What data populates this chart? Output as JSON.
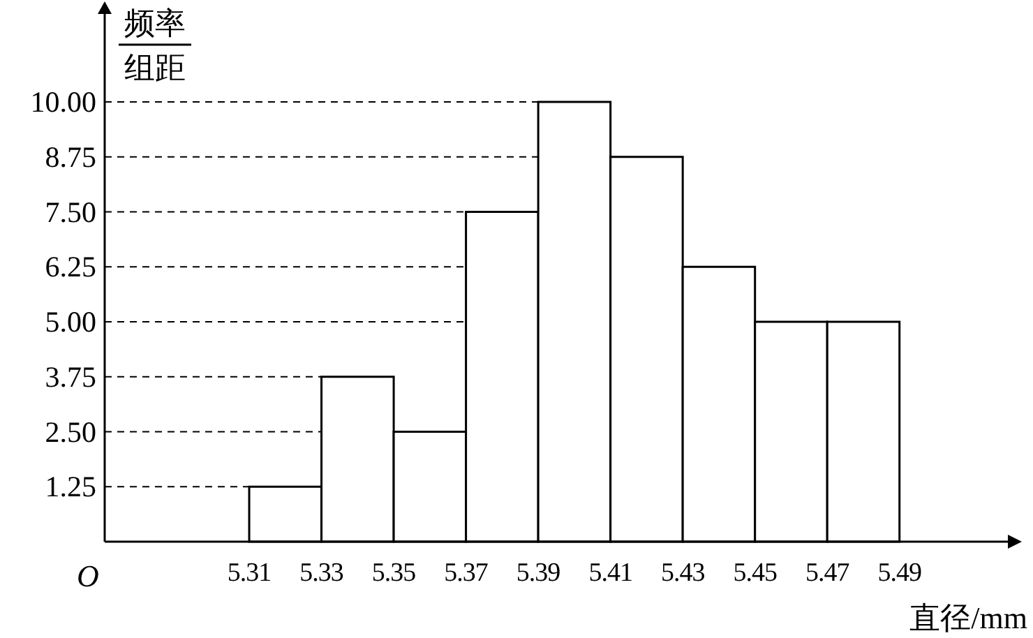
{
  "chart_data": {
    "type": "histogram",
    "xlabel": "直径/mm",
    "ylabel": "频率组距",
    "bins": [
      5.31,
      5.33,
      5.35,
      5.37,
      5.39,
      5.41,
      5.43,
      5.45,
      5.47,
      5.49
    ],
    "values": [
      1.25,
      3.75,
      2.5,
      7.5,
      10,
      8.75,
      6.25,
      5,
      5
    ],
    "color": "#ffffff",
    "xlim": [
      5.27,
      5.52
    ],
    "ylim": [
      0,
      12
    ],
    "xticks": [
      5.31,
      5.33,
      5.35,
      5.37,
      5.39,
      5.41,
      5.43,
      5.45,
      5.47,
      5.49
    ],
    "yticks": [
      {
        "value": 1.25,
        "label": "1.25"
      },
      {
        "value": 2.5,
        "label": "2.50"
      },
      {
        "value": 3.75,
        "label": "3.75"
      },
      {
        "value": 5,
        "label": "5.00"
      },
      {
        "value": 6.25,
        "label": "6.25"
      },
      {
        "value": 7.5,
        "label": "7.50"
      },
      {
        "value": 8.75,
        "label": "8.75"
      },
      {
        "value": 10,
        "label": "10.00"
      }
    ],
    "ref_lines": [
      {
        "axis": "y",
        "value": 1.25,
        "line_style": "dashed"
      },
      {
        "axis": "y",
        "value": 2.5,
        "line_style": "dashed"
      },
      {
        "axis": "y",
        "value": 3.75,
        "line_style": "dashed"
      },
      {
        "axis": "y",
        "value": 5,
        "line_style": "dashed"
      },
      {
        "axis": "y",
        "value": 6.25,
        "line_style": "dashed"
      },
      {
        "axis": "y",
        "value": 7.5,
        "line_style": "dashed"
      },
      {
        "axis": "y",
        "value": 8.75,
        "line_style": "dashed"
      },
      {
        "axis": "y",
        "value": 10,
        "line_style": "dashed"
      }
    ],
    "annotations": [
      "O"
    ]
  }
}
